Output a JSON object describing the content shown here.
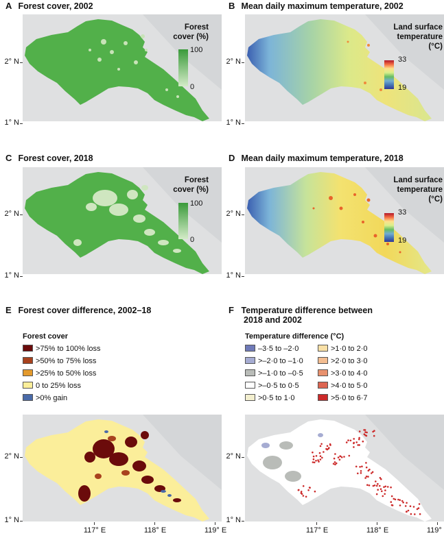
{
  "panels": {
    "a": {
      "letter": "A",
      "title": "Forest cover, 2002"
    },
    "b": {
      "letter": "B",
      "title": "Mean daily maximum temperature, 2002"
    },
    "c": {
      "letter": "C",
      "title": "Forest cover, 2018"
    },
    "d": {
      "letter": "D",
      "title": "Mean daily maximum temperature, 2018"
    },
    "e": {
      "letter": "E",
      "title": "Forest cover difference, 2002–18"
    },
    "f": {
      "letter": "F",
      "title_line1": "Temperature difference between",
      "title_line2": "2018 and 2002"
    }
  },
  "axes": {
    "lat_labels": [
      "2° N",
      "1° N"
    ],
    "lon_labels": [
      "117° E",
      "118° E",
      "119° E"
    ]
  },
  "forest_colorbar": {
    "title": "Forest\ncover (%)",
    "max": "100",
    "min": "0",
    "colors": [
      "#3a9a3a",
      "#d4ebc8"
    ]
  },
  "temp_colorbar": {
    "title": "Land surface\ntemperature\n(°C)",
    "max": "33",
    "min": "19",
    "colors": [
      "#b2182b",
      "#f46d43",
      "#fee08b",
      "#d9ef8b",
      "#66bd63",
      "#74add1",
      "#4575b4",
      "#313695"
    ]
  },
  "forest_diff_legend": {
    "title": "Forest cover",
    "items": [
      {
        "label": ">75% to 100% loss",
        "color": "#6b0b0b"
      },
      {
        "label": ">50% to 75% loss",
        "color": "#a8421e"
      },
      {
        "label": ">25% to 50% loss",
        "color": "#e39a2d"
      },
      {
        "label": "0 to 25% loss",
        "color": "#fbee9a"
      },
      {
        "label": ">0% gain",
        "color": "#4a6aa8"
      }
    ]
  },
  "temp_diff_legend": {
    "title": "Temperature difference (°C)",
    "items": [
      {
        "label": "–3·5 to –2·0",
        "color": "#6f7ab8"
      },
      {
        "label": ">–2·0 to –1·0",
        "color": "#a6acd2"
      },
      {
        "label": ">–1·0 to –0·5",
        "color": "#b9bcb8"
      },
      {
        "label": ">–0·5 to 0·5",
        "color": "#ffffff"
      },
      {
        "label": ">0·5 to 1·0",
        "color": "#f3efcf"
      },
      {
        "label": ">1·0 to 2·0",
        "color": "#f9e0a6"
      },
      {
        "label": ">2·0 to 3·0",
        "color": "#f3bd91"
      },
      {
        "label": ">3·0 to 4·0",
        "color": "#e8916e"
      },
      {
        "label": ">4·0 to 5·0",
        "color": "#dd6551"
      },
      {
        "label": ">5·0 to 6·7",
        "color": "#cc2a2a"
      }
    ]
  }
}
